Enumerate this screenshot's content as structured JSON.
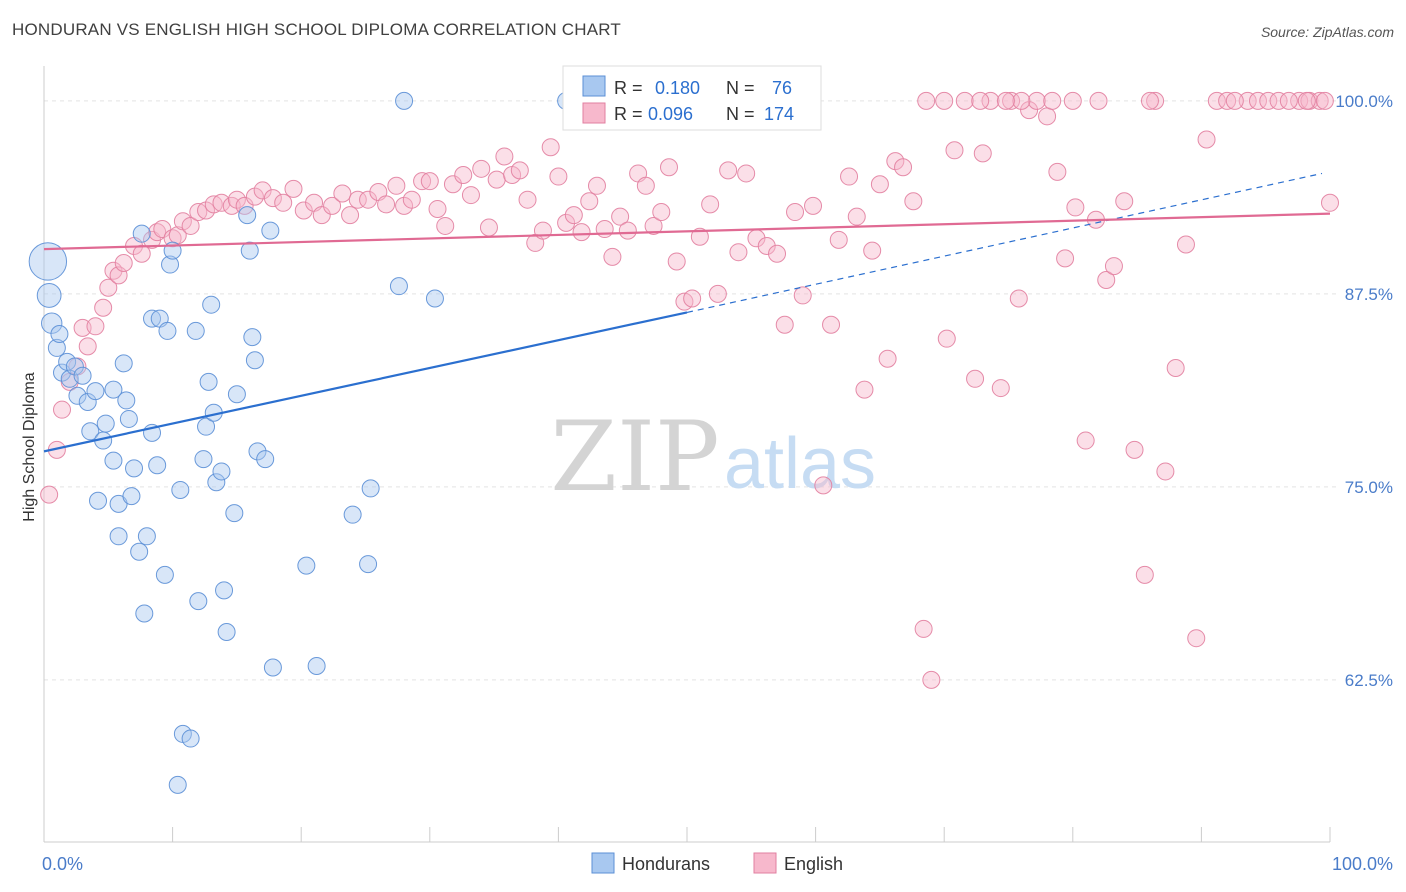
{
  "title": "HONDURAN VS ENGLISH HIGH SCHOOL DIPLOMA CORRELATION CHART",
  "source": "Source: ZipAtlas.com",
  "watermark": {
    "zip": "ZIP",
    "atlas": "atlas"
  },
  "colors": {
    "blue_fill": "#a8c8f0",
    "blue_stroke": "#5b8fd6",
    "blue_line": "#2b6fcf",
    "pink_fill": "#f7b8cc",
    "pink_stroke": "#e27fa0",
    "pink_line": "#e06a93",
    "tick_label": "#4a7cc9",
    "grid": "#e4e4e4"
  },
  "legend_box": {
    "rows": [
      {
        "r_label": "R =",
        "r_value": "0.180",
        "n_label": "N =",
        "n_value": "76",
        "series": "blue"
      },
      {
        "r_label": "R =",
        "r_value": "0.096",
        "n_label": "N =",
        "n_value": "174",
        "series": "pink"
      }
    ]
  },
  "bottom_legend": [
    {
      "label": "Hondurans",
      "series": "blue"
    },
    {
      "label": "English",
      "series": "pink"
    }
  ],
  "chart_data": {
    "type": "scatter",
    "title": "HONDURAN VS ENGLISH HIGH SCHOOL DIPLOMA CORRELATION CHART",
    "xlabel": "",
    "ylabel": "High School Diploma",
    "xlim": [
      0,
      100
    ],
    "ylim": [
      52,
      102
    ],
    "x_tick_labels": [
      "0.0%",
      "100.0%"
    ],
    "y_ticks": [
      62.5,
      75.0,
      87.5,
      100.0
    ],
    "y_tick_labels": [
      "62.5%",
      "75.0%",
      "87.5%",
      "100.0%"
    ],
    "grid": true,
    "legend_position": "top-center",
    "series": [
      {
        "name": "Hondurans",
        "color": "#a8c8f0",
        "trend": {
          "x": [
            0,
            50
          ],
          "y": [
            77.3,
            86.3
          ],
          "dashed_to": [
            100,
            95.3
          ]
        },
        "points": [
          [
            0.3,
            89.6,
            2.2
          ],
          [
            0.4,
            87.4,
            1.4
          ],
          [
            0.6,
            85.6,
            1.2
          ],
          [
            1.0,
            84.0,
            1
          ],
          [
            1.2,
            84.9,
            1
          ],
          [
            1.4,
            82.4,
            1
          ],
          [
            1.8,
            83.1,
            1
          ],
          [
            2.0,
            82.0,
            1
          ],
          [
            2.4,
            82.8,
            1
          ],
          [
            2.6,
            80.9,
            1
          ],
          [
            3.0,
            82.2,
            1
          ],
          [
            3.4,
            80.5,
            1
          ],
          [
            3.6,
            78.6,
            1
          ],
          [
            4.0,
            81.2,
            1
          ],
          [
            4.2,
            74.1,
            1
          ],
          [
            4.6,
            78.0,
            1
          ],
          [
            4.8,
            79.1,
            1
          ],
          [
            5.4,
            81.3,
            1
          ],
          [
            5.4,
            76.7,
            1
          ],
          [
            5.8,
            71.8,
            1
          ],
          [
            5.8,
            73.9,
            1
          ],
          [
            6.2,
            83.0,
            1
          ],
          [
            6.4,
            80.6,
            1
          ],
          [
            6.6,
            79.4,
            1
          ],
          [
            6.8,
            74.4,
            1
          ],
          [
            7.0,
            76.2,
            1
          ],
          [
            7.4,
            70.8,
            1
          ],
          [
            7.6,
            91.4,
            1
          ],
          [
            7.8,
            66.8,
            1
          ],
          [
            8.0,
            71.8,
            1
          ],
          [
            8.4,
            78.5,
            1
          ],
          [
            8.4,
            85.9,
            1
          ],
          [
            8.8,
            76.4,
            1
          ],
          [
            9.0,
            85.9,
            1
          ],
          [
            9.4,
            69.3,
            1
          ],
          [
            9.6,
            85.1,
            1
          ],
          [
            9.8,
            89.4,
            1
          ],
          [
            10.0,
            90.3,
            1
          ],
          [
            10.4,
            55.7,
            1
          ],
          [
            10.6,
            74.8,
            1
          ],
          [
            10.8,
            59.0,
            1
          ],
          [
            11.4,
            58.7,
            1
          ],
          [
            11.8,
            85.1,
            1
          ],
          [
            12.0,
            67.6,
            1
          ],
          [
            12.4,
            76.8,
            1
          ],
          [
            12.6,
            78.9,
            1
          ],
          [
            12.8,
            81.8,
            1
          ],
          [
            13.0,
            86.8,
            1
          ],
          [
            13.2,
            79.8,
            1
          ],
          [
            13.4,
            75.3,
            1
          ],
          [
            13.8,
            76.0,
            1
          ],
          [
            14.0,
            68.3,
            1
          ],
          [
            14.2,
            65.6,
            1
          ],
          [
            14.8,
            73.3,
            1
          ],
          [
            15.0,
            81.0,
            1
          ],
          [
            15.8,
            92.6,
            1
          ],
          [
            16.0,
            90.3,
            1
          ],
          [
            16.2,
            84.7,
            1
          ],
          [
            16.4,
            83.2,
            1
          ],
          [
            16.6,
            77.3,
            1
          ],
          [
            17.2,
            76.8,
            1
          ],
          [
            17.6,
            91.6,
            1
          ],
          [
            17.8,
            63.3,
            1
          ],
          [
            20.4,
            69.9,
            1
          ],
          [
            21.2,
            63.4,
            1
          ],
          [
            24.0,
            73.2,
            1
          ],
          [
            25.2,
            70.0,
            1
          ],
          [
            25.4,
            74.9,
            1
          ],
          [
            27.6,
            88.0,
            1
          ],
          [
            28.0,
            100.0,
            1
          ],
          [
            30.4,
            87.2,
            1
          ],
          [
            40.6,
            100.0,
            1
          ]
        ]
      },
      {
        "name": "English",
        "color": "#f7b8cc",
        "trend": {
          "x": [
            0,
            100
          ],
          "y": [
            90.4,
            92.7
          ]
        },
        "points": [
          [
            0.4,
            74.5,
            1
          ],
          [
            1.0,
            77.4,
            1
          ],
          [
            1.4,
            80.0,
            1
          ],
          [
            2.0,
            81.8,
            1
          ],
          [
            2.6,
            82.8,
            1
          ],
          [
            3.0,
            85.3,
            1
          ],
          [
            3.4,
            84.1,
            1
          ],
          [
            4.0,
            85.4,
            1
          ],
          [
            4.6,
            86.6,
            1
          ],
          [
            5.0,
            87.9,
            1
          ],
          [
            5.4,
            89.0,
            1
          ],
          [
            5.8,
            88.7,
            1
          ],
          [
            6.2,
            89.5,
            1
          ],
          [
            7.0,
            90.6,
            1
          ],
          [
            7.6,
            90.1,
            1
          ],
          [
            8.4,
            91.0,
            1
          ],
          [
            8.8,
            91.5,
            1
          ],
          [
            9.2,
            91.7,
            1
          ],
          [
            10.0,
            91.1,
            1
          ],
          [
            10.4,
            91.3,
            1
          ],
          [
            10.8,
            92.2,
            1
          ],
          [
            11.4,
            91.9,
            1
          ],
          [
            12.0,
            92.8,
            1
          ],
          [
            12.6,
            92.9,
            1
          ],
          [
            13.2,
            93.3,
            1
          ],
          [
            13.8,
            93.4,
            1
          ],
          [
            14.6,
            93.2,
            1
          ],
          [
            15.0,
            93.6,
            1
          ],
          [
            15.6,
            93.2,
            1
          ],
          [
            16.4,
            93.8,
            1
          ],
          [
            17.0,
            94.2,
            1
          ],
          [
            17.8,
            93.7,
            1
          ],
          [
            18.6,
            93.4,
            1
          ],
          [
            19.4,
            94.3,
            1
          ],
          [
            20.2,
            92.9,
            1
          ],
          [
            21.0,
            93.4,
            1
          ],
          [
            21.6,
            92.6,
            1
          ],
          [
            22.4,
            93.2,
            1
          ],
          [
            23.2,
            94.0,
            1
          ],
          [
            23.8,
            92.6,
            1
          ],
          [
            24.4,
            93.6,
            1
          ],
          [
            25.2,
            93.6,
            1
          ],
          [
            26.0,
            94.1,
            1
          ],
          [
            26.6,
            93.3,
            1
          ],
          [
            27.4,
            94.5,
            1
          ],
          [
            28.0,
            93.2,
            1
          ],
          [
            28.6,
            93.6,
            1
          ],
          [
            29.4,
            94.8,
            1
          ],
          [
            30.0,
            94.8,
            1
          ],
          [
            30.6,
            93.0,
            1
          ],
          [
            31.2,
            91.9,
            1
          ],
          [
            31.8,
            94.6,
            1
          ],
          [
            32.6,
            95.2,
            1
          ],
          [
            33.2,
            93.9,
            1
          ],
          [
            34.0,
            95.6,
            1
          ],
          [
            34.6,
            91.8,
            1
          ],
          [
            35.2,
            94.9,
            1
          ],
          [
            35.8,
            96.4,
            1
          ],
          [
            36.4,
            95.2,
            1
          ],
          [
            37.0,
            95.5,
            1
          ],
          [
            37.6,
            93.6,
            1
          ],
          [
            38.2,
            90.8,
            1
          ],
          [
            38.8,
            91.6,
            1
          ],
          [
            39.4,
            97.0,
            1
          ],
          [
            40.0,
            95.1,
            1
          ],
          [
            40.6,
            92.1,
            1
          ],
          [
            41.2,
            92.6,
            1
          ],
          [
            41.8,
            91.5,
            1
          ],
          [
            42.4,
            93.5,
            1
          ],
          [
            43.0,
            94.5,
            1
          ],
          [
            43.6,
            91.7,
            1
          ],
          [
            44.2,
            89.9,
            1
          ],
          [
            44.8,
            92.5,
            1
          ],
          [
            45.4,
            91.6,
            1
          ],
          [
            46.2,
            95.3,
            1
          ],
          [
            46.8,
            94.5,
            1
          ],
          [
            47.4,
            91.9,
            1
          ],
          [
            48.0,
            92.8,
            1
          ],
          [
            48.6,
            95.7,
            1
          ],
          [
            49.2,
            89.6,
            1
          ],
          [
            49.8,
            87.0,
            1
          ],
          [
            50.4,
            87.2,
            1
          ],
          [
            51.0,
            91.2,
            1
          ],
          [
            51.8,
            93.3,
            1
          ],
          [
            52.4,
            87.5,
            1
          ],
          [
            53.2,
            95.5,
            1
          ],
          [
            54.0,
            90.2,
            1
          ],
          [
            54.6,
            95.3,
            1
          ],
          [
            55.4,
            91.1,
            1
          ],
          [
            56.2,
            90.6,
            1
          ],
          [
            57.0,
            90.1,
            1
          ],
          [
            57.6,
            85.5,
            1
          ],
          [
            58.4,
            92.8,
            1
          ],
          [
            59.0,
            87.4,
            1
          ],
          [
            59.8,
            93.2,
            1
          ],
          [
            60.6,
            75.1,
            1
          ],
          [
            61.2,
            85.5,
            1
          ],
          [
            61.8,
            91.0,
            1
          ],
          [
            62.6,
            95.1,
            1
          ],
          [
            63.2,
            92.5,
            1
          ],
          [
            63.8,
            81.3,
            1
          ],
          [
            64.4,
            90.3,
            1
          ],
          [
            65.0,
            94.6,
            1
          ],
          [
            65.6,
            83.3,
            1
          ],
          [
            66.2,
            96.1,
            1
          ],
          [
            66.8,
            95.7,
            1
          ],
          [
            67.6,
            93.5,
            1
          ],
          [
            68.4,
            65.8,
            1
          ],
          [
            69.0,
            62.5,
            1
          ],
          [
            70.2,
            84.6,
            1
          ],
          [
            70.8,
            96.8,
            1
          ],
          [
            71.6,
            100.0,
            1
          ],
          [
            72.4,
            82.0,
            1
          ],
          [
            73.0,
            96.6,
            1
          ],
          [
            73.6,
            100.0,
            1
          ],
          [
            74.4,
            81.4,
            1
          ],
          [
            75.2,
            100.0,
            1
          ],
          [
            75.8,
            87.2,
            1
          ],
          [
            76.6,
            99.4,
            1
          ],
          [
            77.2,
            100.0,
            1
          ],
          [
            78.0,
            99.0,
            1
          ],
          [
            78.8,
            95.4,
            1
          ],
          [
            79.4,
            89.8,
            1
          ],
          [
            80.2,
            93.1,
            1
          ],
          [
            81.0,
            78.0,
            1
          ],
          [
            81.8,
            92.3,
            1
          ],
          [
            82.6,
            88.4,
            1
          ],
          [
            83.2,
            89.3,
            1
          ],
          [
            84.0,
            93.5,
            1
          ],
          [
            84.8,
            77.4,
            1
          ],
          [
            85.6,
            69.3,
            1
          ],
          [
            86.4,
            100.0,
            1
          ],
          [
            87.2,
            76.0,
            1
          ],
          [
            88.0,
            82.7,
            1
          ],
          [
            88.8,
            90.7,
            1
          ],
          [
            89.6,
            65.2,
            1
          ],
          [
            90.4,
            97.5,
            1
          ],
          [
            91.2,
            100.0,
            1
          ],
          [
            92.0,
            100.0,
            1
          ],
          [
            93.6,
            100.0,
            1
          ],
          [
            94.4,
            100.0,
            1
          ],
          [
            95.2,
            100.0,
            1
          ],
          [
            96.0,
            100.0,
            1
          ],
          [
            97.6,
            100.0,
            1
          ],
          [
            98.4,
            100.0,
            1
          ],
          [
            99.2,
            100.0,
            1
          ],
          [
            100.0,
            93.4,
            1
          ],
          [
            98.2,
            100.0,
            1
          ],
          [
            99.6,
            100.0,
            1
          ],
          [
            96.8,
            100.0,
            1
          ],
          [
            92.6,
            100.0,
            1
          ],
          [
            86.0,
            100.0,
            1
          ],
          [
            82.0,
            100.0,
            1
          ],
          [
            80.0,
            100.0,
            1
          ],
          [
            78.4,
            100.0,
            1
          ],
          [
            76.0,
            100.0,
            1
          ],
          [
            74.8,
            100.0,
            1
          ],
          [
            72.8,
            100.0,
            1
          ],
          [
            70.0,
            100.0,
            1
          ],
          [
            68.6,
            100.0,
            1
          ]
        ]
      }
    ]
  }
}
